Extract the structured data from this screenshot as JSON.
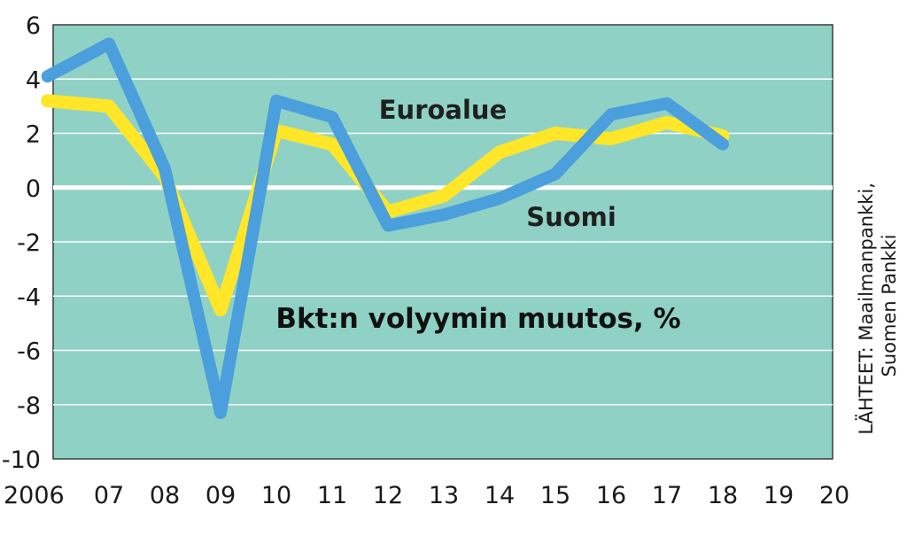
{
  "chart_data": {
    "type": "line",
    "title": "Bkt:n volyymin muutos, %",
    "xlabel": "",
    "ylabel": "",
    "x_tick_labels": [
      "2006",
      "07",
      "08",
      "09",
      "10",
      "11",
      "12",
      "13",
      "14",
      "15",
      "16",
      "17",
      "18",
      "19",
      "20"
    ],
    "x": [
      2006,
      2007,
      2008,
      2009,
      2010,
      2011,
      2012,
      2013,
      2014,
      2015,
      2016,
      2017,
      2018,
      2019,
      2020
    ],
    "ylim": [
      -10,
      6
    ],
    "y_ticks": [
      6,
      4,
      2,
      0,
      -2,
      -4,
      -6,
      -8,
      -10
    ],
    "grid": true,
    "series": [
      {
        "name": "Euroalue",
        "color": "#ffe629",
        "x": [
          2005.9,
          2007,
          2008,
          2009,
          2010,
          2011,
          2012,
          2013,
          2014,
          2015,
          2016,
          2017,
          2018
        ],
        "values": [
          3.2,
          3.0,
          0.4,
          -4.5,
          2.1,
          1.6,
          -0.9,
          -0.3,
          1.3,
          2.0,
          1.8,
          2.4,
          1.9
        ]
      },
      {
        "name": "Suomi",
        "color": "#4a9fdc",
        "x": [
          2005.9,
          2007,
          2008,
          2009,
          2010,
          2011,
          2012,
          2013,
          2014,
          2015,
          2016,
          2017,
          2018
        ],
        "values": [
          4.1,
          5.3,
          0.7,
          -8.3,
          3.2,
          2.6,
          -1.4,
          -1.0,
          -0.4,
          0.5,
          2.7,
          3.1,
          1.6
        ]
      }
    ],
    "background_color": "#8fd2c5",
    "source": "LÄHTEET: Maailmanpankki, Suomen Pankki"
  }
}
